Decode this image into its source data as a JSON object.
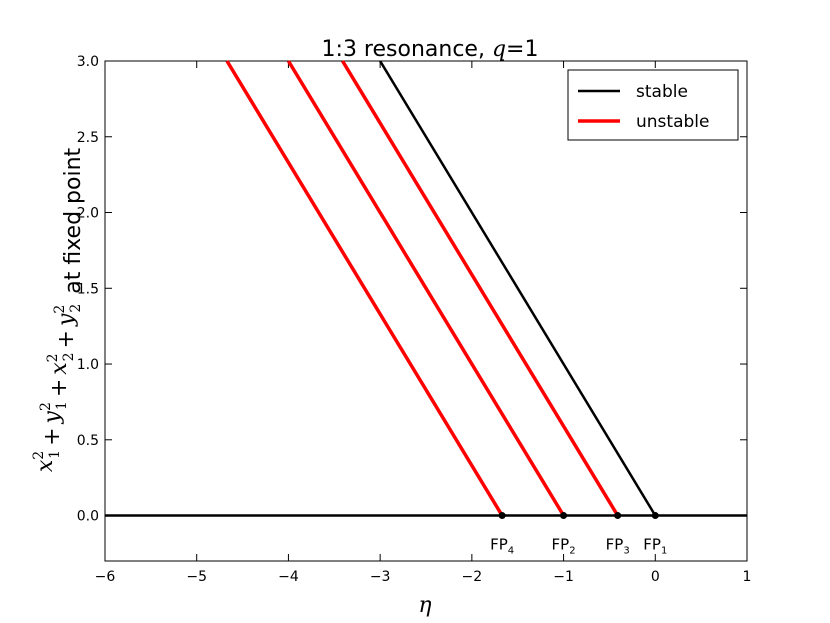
{
  "chart_data": {
    "type": "line",
    "title": "1:3 resonance, q=1",
    "xlabel": "η",
    "ylabel": "x1^2 + y1^2 + x2^2 + y2^2 at fixed point",
    "xlim": [
      -6,
      1
    ],
    "ylim": [
      -0.3,
      3.0
    ],
    "x_ticks": [
      -6,
      -5,
      -4,
      -3,
      -2,
      -1,
      0,
      1
    ],
    "x_tick_labels": [
      "−6",
      "−5",
      "−4",
      "−3",
      "−2",
      "−1",
      "0",
      "1"
    ],
    "y_ticks": [
      0.0,
      0.5,
      1.0,
      1.5,
      2.0,
      2.5,
      3.0
    ],
    "y_tick_labels": [
      "0.0",
      "0.5",
      "1.0",
      "1.5",
      "2.0",
      "2.5",
      "3.0"
    ],
    "grid": false,
    "legend_position": "top-right",
    "legend": [
      {
        "label": "stable",
        "color": "#000000"
      },
      {
        "label": "unstable",
        "color": "#ff0000"
      }
    ],
    "series": [
      {
        "style": "stable",
        "color": "#000000",
        "x": [
          -3.0,
          0.0
        ],
        "y": [
          3.0,
          0.0
        ]
      },
      {
        "style": "unstable",
        "color": "#ff0000",
        "x": [
          -3.41,
          -0.41
        ],
        "y": [
          3.0,
          0.0
        ]
      },
      {
        "style": "unstable",
        "color": "#ff0000",
        "x": [
          -4.0,
          -1.0
        ],
        "y": [
          3.0,
          0.0
        ]
      },
      {
        "style": "unstable",
        "color": "#ff0000",
        "x": [
          -4.67,
          -1.67
        ],
        "y": [
          3.0,
          0.0
        ]
      },
      {
        "style": "baseline",
        "color": "#000000",
        "x": [
          -6.0,
          1.0
        ],
        "y": [
          0.0,
          0.0
        ]
      }
    ],
    "fixed_points": [
      {
        "label": "FP",
        "sub": "4",
        "x": -1.67,
        "y": 0.0
      },
      {
        "label": "FP",
        "sub": "2",
        "x": -1.0,
        "y": 0.0
      },
      {
        "label": "FP",
        "sub": "3",
        "x": -0.41,
        "y": 0.0
      },
      {
        "label": "FP",
        "sub": "1",
        "x": 0.0,
        "y": 0.0
      }
    ]
  }
}
